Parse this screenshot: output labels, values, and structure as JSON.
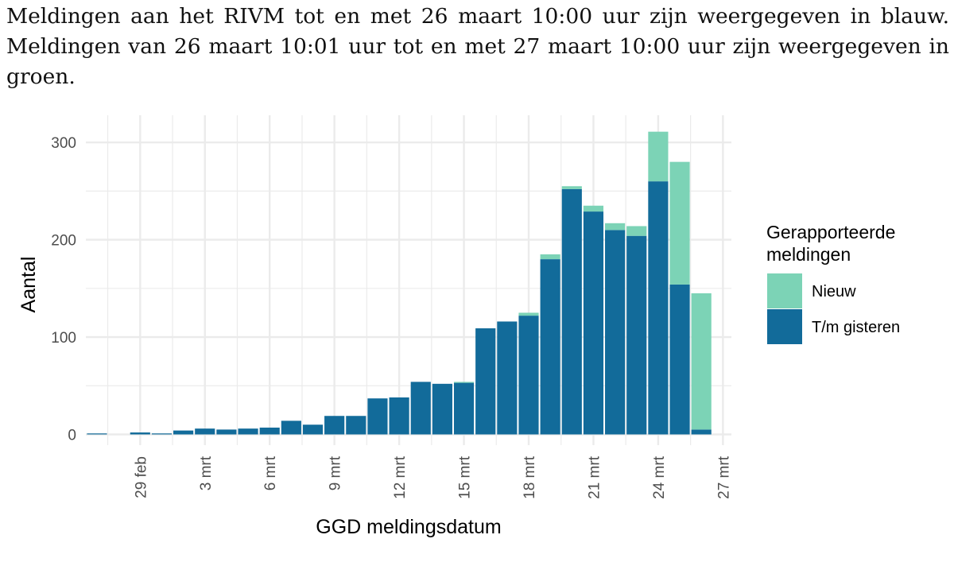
{
  "caption": {
    "line1": "Meldingen aan het RIVM tot en met 26 maart 10:00 uur zijn weergegeven in blauw.",
    "line2": "Meldingen van 26 maart 10:01 uur tot en met 27 maart 10:00 uur zijn weergegeven in",
    "line3": "groen."
  },
  "colors": {
    "blue": "#126b9a",
    "green": "#7cd3b6",
    "grid": "#ebebeb",
    "text": "#4d4d4d"
  },
  "chart_data": {
    "type": "bar",
    "stacked": true,
    "xlabel": "GGD meldingsdatum",
    "ylabel": "Aantal",
    "ylim": [
      -12,
      322
    ],
    "yticks": [
      0,
      100,
      200,
      300
    ],
    "x_first_day": 27,
    "x_last_day": 56,
    "xticks": [
      {
        "day": 29,
        "label": "29 feb"
      },
      {
        "day": 32,
        "label": "3 mrt"
      },
      {
        "day": 35,
        "label": "6 mrt"
      },
      {
        "day": 38,
        "label": "9 mrt"
      },
      {
        "day": 41,
        "label": "12 mrt"
      },
      {
        "day": 44,
        "label": "15 mrt"
      },
      {
        "day": 47,
        "label": "18 mrt"
      },
      {
        "day": 50,
        "label": "21 mrt"
      },
      {
        "day": 53,
        "label": "24 mrt"
      },
      {
        "day": 56,
        "label": "27 mrt"
      }
    ],
    "legend": {
      "title_line1": "Gerapporteerde",
      "title_line2": "meldingen",
      "position": "right",
      "items": [
        {
          "name": "Nieuw",
          "color": "#7cd3b6"
        },
        {
          "name": "T/m gisteren",
          "color": "#126b9a"
        }
      ]
    },
    "series": [
      {
        "name": "T/m gisteren",
        "color": "#126b9a",
        "points": [
          {
            "day": 27,
            "value": 1
          },
          {
            "day": 29,
            "value": 2
          },
          {
            "day": 30,
            "value": 1
          },
          {
            "day": 31,
            "value": 4
          },
          {
            "day": 32,
            "value": 6
          },
          {
            "day": 33,
            "value": 5
          },
          {
            "day": 34,
            "value": 6
          },
          {
            "day": 35,
            "value": 7
          },
          {
            "day": 36,
            "value": 14
          },
          {
            "day": 37,
            "value": 10
          },
          {
            "day": 38,
            "value": 19
          },
          {
            "day": 39,
            "value": 19
          },
          {
            "day": 40,
            "value": 37
          },
          {
            "day": 41,
            "value": 38
          },
          {
            "day": 42,
            "value": 54
          },
          {
            "day": 43,
            "value": 52
          },
          {
            "day": 44,
            "value": 53
          },
          {
            "day": 45,
            "value": 109
          },
          {
            "day": 46,
            "value": 116
          },
          {
            "day": 47,
            "value": 122
          },
          {
            "day": 48,
            "value": 180
          },
          {
            "day": 49,
            "value": 252
          },
          {
            "day": 50,
            "value": 229
          },
          {
            "day": 51,
            "value": 210
          },
          {
            "day": 52,
            "value": 204
          },
          {
            "day": 53,
            "value": 260
          },
          {
            "day": 54,
            "value": 154
          },
          {
            "day": 55,
            "value": 5
          }
        ]
      },
      {
        "name": "Nieuw",
        "color": "#7cd3b6",
        "points": [
          {
            "day": 44,
            "value": 1
          },
          {
            "day": 47,
            "value": 3
          },
          {
            "day": 48,
            "value": 5
          },
          {
            "day": 49,
            "value": 3
          },
          {
            "day": 50,
            "value": 6
          },
          {
            "day": 51,
            "value": 7
          },
          {
            "day": 52,
            "value": 10
          },
          {
            "day": 53,
            "value": 51
          },
          {
            "day": 54,
            "value": 126
          },
          {
            "day": 55,
            "value": 140
          }
        ]
      }
    ]
  }
}
